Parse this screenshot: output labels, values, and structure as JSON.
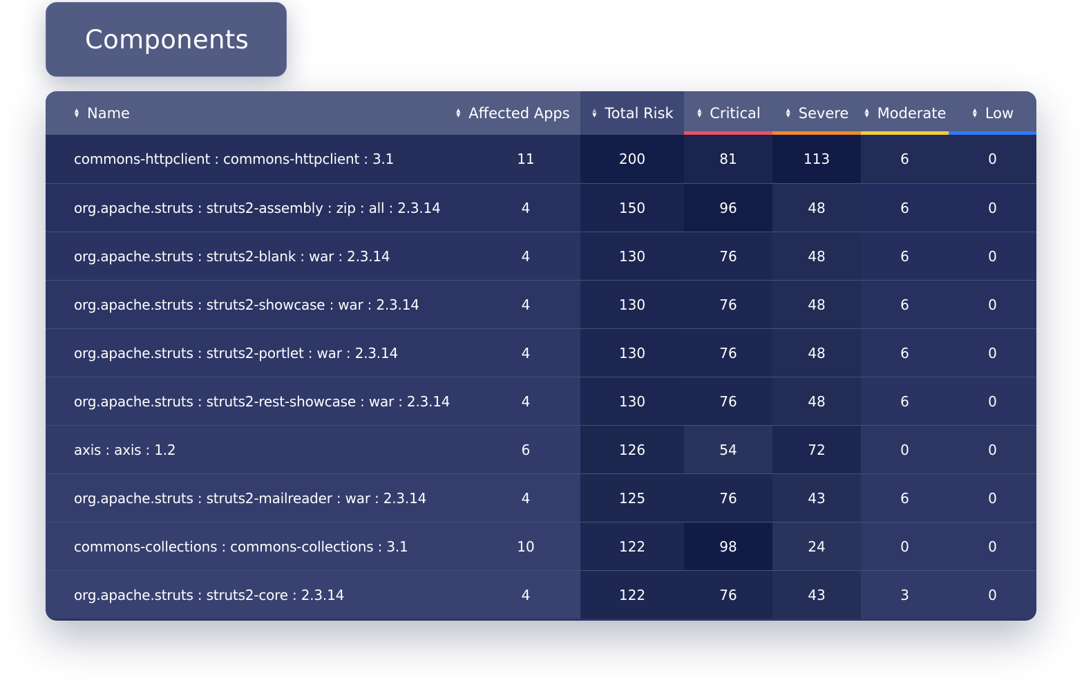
{
  "title": "Components",
  "columns": [
    {
      "key": "name",
      "label": "Name"
    },
    {
      "key": "apps",
      "label": "Affected Apps"
    },
    {
      "key": "risk",
      "label": "Total Risk",
      "sorted": "desc"
    },
    {
      "key": "crit",
      "label": "Critical",
      "accent": "#e8536b"
    },
    {
      "key": "sev",
      "label": "Severe",
      "accent": "#ee8a2a"
    },
    {
      "key": "mod",
      "label": "Moderate",
      "accent": "#f3cf3a"
    },
    {
      "key": "low",
      "label": "Low",
      "accent": "#2f7cf6"
    }
  ],
  "rows": [
    {
      "name": "commons-httpclient : commons-httpclient : 3.1",
      "apps": "11",
      "risk": "200",
      "crit": "81",
      "sev": "113",
      "mod": "6",
      "low": "0"
    },
    {
      "name": "org.apache.struts : struts2-assembly : zip : all : 2.3.14",
      "apps": "4",
      "risk": "150",
      "crit": "96",
      "sev": "48",
      "mod": "6",
      "low": "0"
    },
    {
      "name": "org.apache.struts : struts2-blank : war : 2.3.14",
      "apps": "4",
      "risk": "130",
      "crit": "76",
      "sev": "48",
      "mod": "6",
      "low": "0"
    },
    {
      "name": "org.apache.struts : struts2-showcase : war : 2.3.14",
      "apps": "4",
      "risk": "130",
      "crit": "76",
      "sev": "48",
      "mod": "6",
      "low": "0"
    },
    {
      "name": "org.apache.struts : struts2-portlet : war : 2.3.14",
      "apps": "4",
      "risk": "130",
      "crit": "76",
      "sev": "48",
      "mod": "6",
      "low": "0"
    },
    {
      "name": "org.apache.struts : struts2-rest-showcase : war : 2.3.14",
      "apps": "4",
      "risk": "130",
      "crit": "76",
      "sev": "48",
      "mod": "6",
      "low": "0"
    },
    {
      "name": "axis : axis : 1.2",
      "apps": "6",
      "risk": "126",
      "crit": "54",
      "sev": "72",
      "mod": "0",
      "low": "0"
    },
    {
      "name": "org.apache.struts : struts2-mailreader : war : 2.3.14",
      "apps": "4",
      "risk": "125",
      "crit": "76",
      "sev": "43",
      "mod": "6",
      "low": "0"
    },
    {
      "name": "commons-collections : commons-collections : 3.1",
      "apps": "10",
      "risk": "122",
      "crit": "98",
      "sev": "24",
      "mod": "0",
      "low": "0"
    },
    {
      "name": "org.apache.struts : struts2-core : 2.3.14",
      "apps": "4",
      "risk": "122",
      "crit": "76",
      "sev": "43",
      "mod": "3",
      "low": "0"
    }
  ],
  "colors": {
    "header_bg": "#535c83",
    "base_bg": "#2c3560",
    "heat_light": "#2e375f",
    "heat_dark": "#0f1a45"
  }
}
